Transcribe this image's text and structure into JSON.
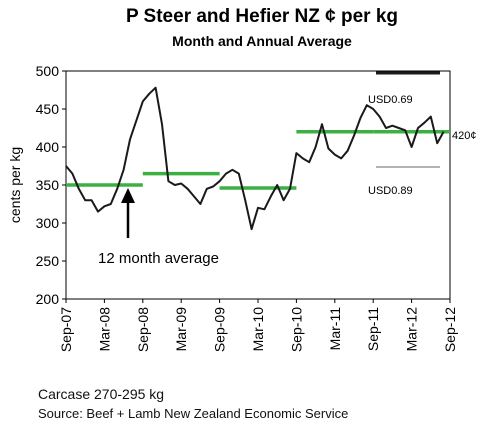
{
  "chart_data": {
    "type": "line",
    "title": "P Steer and Hefier NZ ¢ per kg",
    "subtitle": "Month and Annual Average",
    "ylabel": "cents per kg",
    "xlabel": "",
    "ylim": [
      200,
      500
    ],
    "yticks": [
      200,
      250,
      300,
      350,
      400,
      450,
      500
    ],
    "xticks": [
      "Sep-07",
      "Mar-08",
      "Sep-08",
      "Mar-09",
      "Sep-09",
      "Mar-10",
      "Sep-10",
      "Mar-11",
      "Sep-11",
      "Mar-12",
      "Sep-12"
    ],
    "grid": false,
    "series": [
      {
        "kind": "monthly",
        "color": "#1a1a1a",
        "values": [
          375,
          365,
          345,
          330,
          330,
          315,
          322,
          325,
          345,
          370,
          410,
          435,
          460,
          470,
          478,
          430,
          355,
          350,
          352,
          345,
          335,
          325,
          345,
          348,
          355,
          365,
          370,
          365,
          330,
          292,
          320,
          318,
          335,
          350,
          330,
          345,
          392,
          385,
          380,
          400,
          430,
          398,
          390,
          385,
          395,
          415,
          438,
          455,
          450,
          440,
          425,
          428,
          425,
          422,
          400,
          425,
          432,
          440,
          405,
          420
        ]
      },
      {
        "kind": "annual-average",
        "color": "#3cb043",
        "segments": [
          {
            "start": 0,
            "end": 12,
            "value": 350
          },
          {
            "start": 12,
            "end": 24,
            "value": 365
          },
          {
            "start": 24,
            "end": 36,
            "value": 346
          },
          {
            "start": 36,
            "end": 48,
            "value": 420
          },
          {
            "start": 48,
            "end": 60,
            "value": 420
          }
        ]
      }
    ],
    "annotations": {
      "usd069": "USD0.69",
      "usd089": "USD0.89",
      "avg_value": "420¢",
      "twelve_month": "12 month average"
    }
  },
  "notes": {
    "line1": "Carcase 270-295 kg",
    "line2": "Source: Beef + Lamb New Zealand Economic Service"
  },
  "colors": {
    "line": "#1a1a1a",
    "average": "#3cb043",
    "usd089_line": "#b3b3b3"
  }
}
